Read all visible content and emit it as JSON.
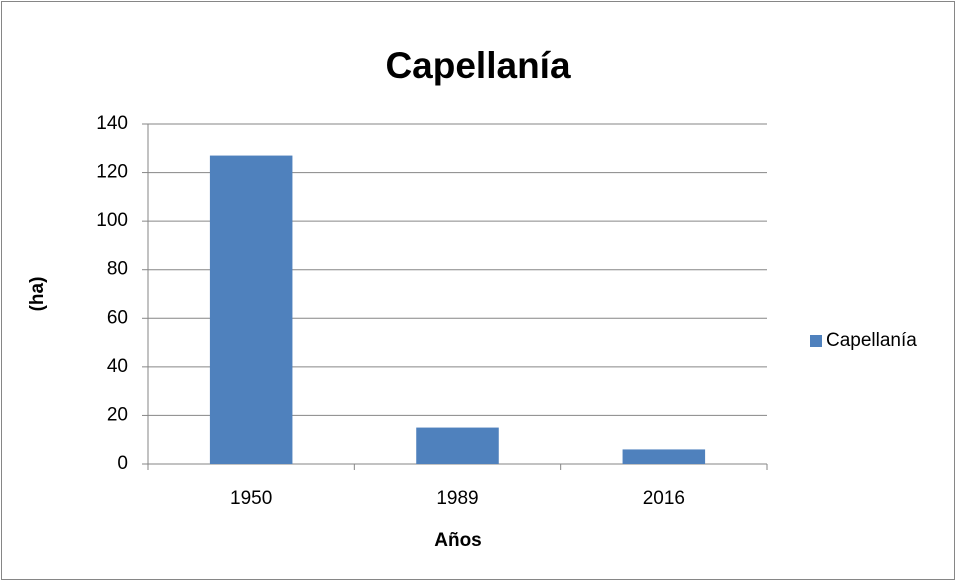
{
  "chart_data": {
    "type": "bar",
    "title": "Capellanía",
    "x_label": "Años",
    "y_label": "(ha)",
    "categories": [
      "1950",
      "1989",
      "2016"
    ],
    "series": [
      {
        "name": "Capellanía",
        "color": "#4f81bd",
        "values": [
          127,
          15,
          6
        ]
      }
    ],
    "ylim": [
      0,
      140
    ],
    "yticks": [
      0,
      20,
      40,
      60,
      80,
      100,
      120,
      140
    ],
    "grid": true,
    "legend": "right"
  }
}
